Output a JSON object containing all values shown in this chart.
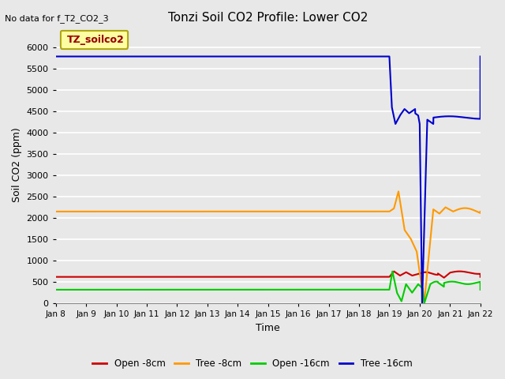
{
  "title": "Tonzi Soil CO2 Profile: Lower CO2",
  "no_data_text": "No data for f_T2_CO2_3",
  "xlabel": "Time",
  "ylabel": "Soil CO2 (ppm)",
  "ylim": [
    0,
    6500
  ],
  "yticks": [
    0,
    500,
    1000,
    1500,
    2000,
    2500,
    3000,
    3500,
    4000,
    4500,
    5000,
    5500,
    6000
  ],
  "bg_color": "#e8e8e8",
  "legend_label": "TZ_soilco2",
  "colors": {
    "open_8cm": "#cc0000",
    "tree_8cm": "#ff9900",
    "open_16cm": "#00cc00",
    "tree_16cm": "#0000cc"
  },
  "labels": {
    "open_8cm": "Open -8cm",
    "tree_8cm": "Tree -8cm",
    "open_16cm": "Open -16cm",
    "tree_16cm": "Tree -16cm"
  },
  "x_tick_labels": [
    "Jan 8",
    "Jan 9",
    "Jan 10",
    "Jan 11",
    "Jan 12",
    "Jan 13",
    "Jan 14",
    "Jan 15",
    "Jan 16",
    "Jan 17",
    "Jan 18",
    "Jan 19",
    "Jan 20",
    "Jan 21",
    "Jan 22"
  ],
  "x_tick_positions": [
    0,
    1,
    2,
    3,
    4,
    5,
    6,
    7,
    8,
    9,
    10,
    11,
    12,
    13,
    14
  ],
  "base_values": {
    "open_8cm": 620,
    "tree_8cm": 2150,
    "open_16cm": 320,
    "tree_16cm": 5780
  }
}
